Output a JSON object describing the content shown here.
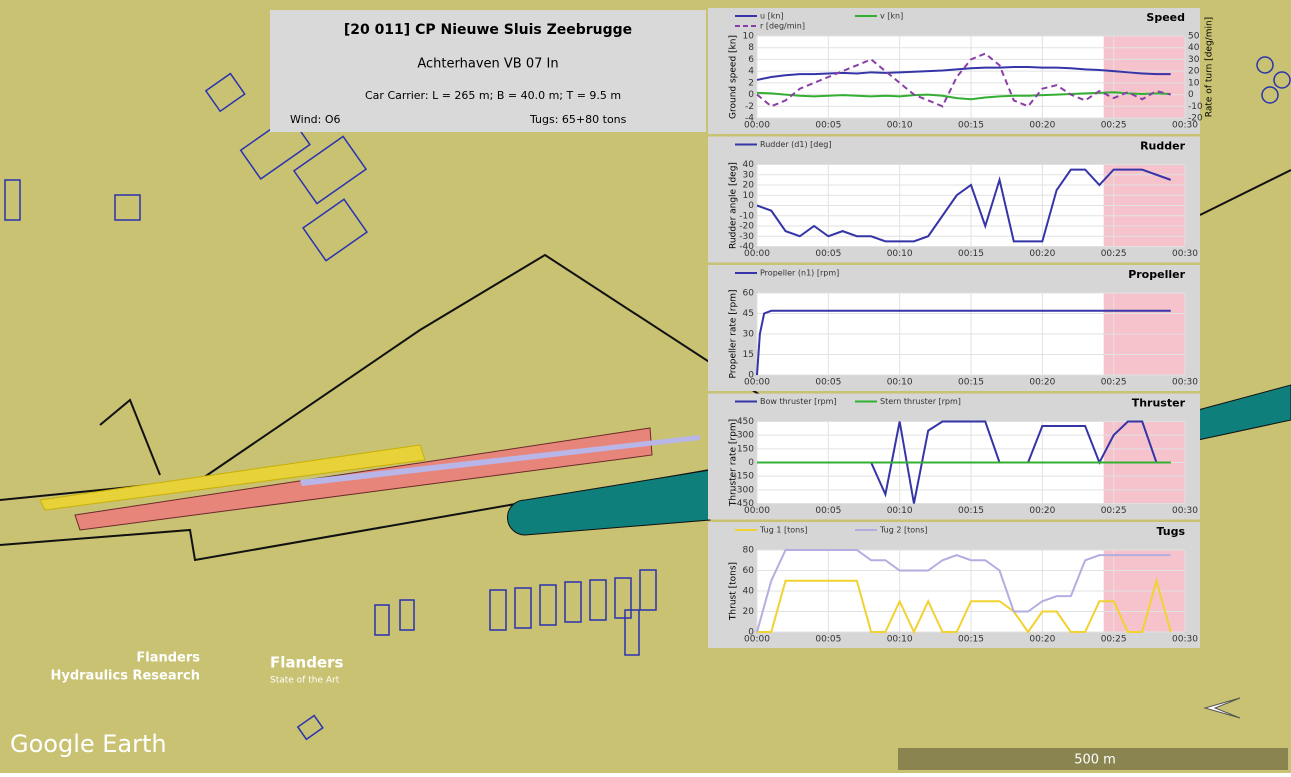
{
  "info_box": {
    "title": "[20 011] CP Nieuwe Sluis Zeebrugge",
    "subtitle": "Achterhaven VB 07 In",
    "ship": "Car Carrier: L = 265 m; B = 40.0 m; T = 9.5 m",
    "wind": "Wind: O6",
    "tugs": "Tugs: 65+80 tons"
  },
  "map": {
    "logo_left_1": "Flanders",
    "logo_left_2": "Hydraulics Research",
    "logo_right_1": "Flanders",
    "logo_right_2": "State of the Art",
    "brand": "Google Earth",
    "scale": "500 m"
  },
  "chart_data": [
    {
      "type": "line",
      "title": "Speed",
      "ylabel": "Ground speed [kn]",
      "y2label": "Rate of turn [deg/min]",
      "x": [
        0,
        1,
        2,
        3,
        4,
        5,
        6,
        7,
        8,
        9,
        10,
        11,
        12,
        13,
        14,
        15,
        16,
        17,
        18,
        19,
        20,
        21,
        22,
        23,
        24,
        25,
        26,
        27,
        28,
        29
      ],
      "xlim": [
        0,
        30
      ],
      "xticks": [
        {
          "value": 0,
          "label": "00:00"
        },
        {
          "value": 5,
          "label": "00:05"
        },
        {
          "value": 10,
          "label": "00:10"
        },
        {
          "value": 15,
          "label": "00:15"
        },
        {
          "value": 20,
          "label": "00:20"
        },
        {
          "value": 25,
          "label": "00:25"
        },
        {
          "value": 30,
          "label": "00:30"
        }
      ],
      "ylim": [
        -4,
        10
      ],
      "yticks": [
        -4,
        -2,
        0,
        2,
        4,
        6,
        8,
        10
      ],
      "y2lim": [
        -20,
        50
      ],
      "y2ticks": [
        -20,
        -10,
        0,
        10,
        20,
        30,
        40,
        50
      ],
      "grid": true,
      "shaded_span": [
        24.3,
        30
      ],
      "shade_color": "#f4b8c4",
      "series": [
        {
          "name": "u [kn]",
          "color": "#3535a8",
          "values": [
            2.5,
            3,
            3.3,
            3.5,
            3.5,
            3.6,
            3.7,
            3.6,
            3.8,
            3.7,
            3.8,
            3.9,
            4,
            4.1,
            4.3,
            4.5,
            4.6,
            4.6,
            4.7,
            4.7,
            4.6,
            4.6,
            4.5,
            4.3,
            4.2,
            4,
            3.8,
            3.6,
            3.5,
            3.5
          ]
        },
        {
          "name": "v [kn]",
          "color": "#33b033",
          "values": [
            0.3,
            0.2,
            0,
            -0.2,
            -0.3,
            -0.2,
            -0.1,
            -0.2,
            -0.3,
            -0.2,
            -0.3,
            -0.1,
            0,
            -0.2,
            -0.6,
            -0.8,
            -0.5,
            -0.3,
            -0.2,
            -0.2,
            -0.1,
            0,
            0.1,
            0.2,
            0.3,
            0.4,
            0.2,
            0.1,
            0.2,
            0.1
          ]
        },
        {
          "name": "r [deg/min]",
          "color": "#8a3fa8",
          "dashed": true,
          "axis": "y2",
          "values": [
            0,
            -10,
            -5,
            5,
            10,
            15,
            20,
            25,
            30,
            20,
            10,
            0,
            -5,
            -10,
            15,
            30,
            35,
            25,
            -5,
            -10,
            5,
            8,
            0,
            -5,
            3,
            -3,
            2,
            -4,
            3,
            0
          ]
        }
      ]
    },
    {
      "type": "line",
      "title": "Rudder",
      "ylabel": "Rudder angle [deg]",
      "x": [
        0,
        1,
        2,
        3,
        4,
        5,
        6,
        7,
        8,
        9,
        10,
        11,
        12,
        13,
        14,
        15,
        16,
        17,
        18,
        19,
        20,
        21,
        22,
        23,
        24,
        25,
        26,
        27,
        28,
        29
      ],
      "xlim": [
        0,
        30
      ],
      "xticks": [
        {
          "value": 0,
          "label": "00:00"
        },
        {
          "value": 5,
          "label": "00:05"
        },
        {
          "value": 10,
          "label": "00:10"
        },
        {
          "value": 15,
          "label": "00:15"
        },
        {
          "value": 20,
          "label": "00:20"
        },
        {
          "value": 25,
          "label": "00:25"
        },
        {
          "value": 30,
          "label": "00:30"
        }
      ],
      "ylim": [
        -40,
        40
      ],
      "yticks": [
        -40,
        -30,
        -20,
        -10,
        0,
        10,
        20,
        30,
        40
      ],
      "grid": true,
      "shaded_span": [
        24.3,
        30
      ],
      "shade_color": "#f4b8c4",
      "series": [
        {
          "name": "Rudder (d1) [deg]",
          "color": "#3535a8",
          "values": [
            0,
            -5,
            -25,
            -30,
            -20,
            -30,
            -25,
            -30,
            -30,
            -35,
            -35,
            -35,
            -30,
            -10,
            10,
            20,
            -20,
            25,
            -35,
            -35,
            -35,
            15,
            35,
            35,
            20,
            35,
            35,
            35,
            30,
            25
          ]
        }
      ]
    },
    {
      "type": "line",
      "title": "Propeller",
      "ylabel": "Propeller rate [rpm]",
      "x": [
        0,
        0.2,
        0.5,
        1,
        29
      ],
      "xlim": [
        0,
        30
      ],
      "xticks": [
        {
          "value": 0,
          "label": "00:00"
        },
        {
          "value": 5,
          "label": "00:05"
        },
        {
          "value": 10,
          "label": "00:10"
        },
        {
          "value": 15,
          "label": "00:15"
        },
        {
          "value": 20,
          "label": "00:20"
        },
        {
          "value": 25,
          "label": "00:25"
        },
        {
          "value": 30,
          "label": "00:30"
        }
      ],
      "ylim": [
        0,
        60
      ],
      "yticks": [
        0,
        15,
        30,
        45,
        60
      ],
      "grid": true,
      "shaded_span": [
        24.3,
        30
      ],
      "shade_color": "#f4b8c4",
      "series": [
        {
          "name": "Propeller (n1) [rpm]",
          "color": "#3535a8",
          "values": [
            0,
            30,
            45,
            47,
            47
          ]
        }
      ]
    },
    {
      "type": "line",
      "title": "Thruster",
      "ylabel": "Thruster rate [rpm]",
      "x": [
        0,
        1,
        2,
        3,
        4,
        5,
        6,
        7,
        8,
        9,
        10,
        11,
        12,
        13,
        14,
        15,
        16,
        17,
        18,
        19,
        20,
        21,
        22,
        23,
        24,
        25,
        26,
        27,
        28,
        29
      ],
      "xlim": [
        0,
        30
      ],
      "xticks": [
        {
          "value": 0,
          "label": "00:00"
        },
        {
          "value": 5,
          "label": "00:05"
        },
        {
          "value": 10,
          "label": "00:10"
        },
        {
          "value": 15,
          "label": "00:15"
        },
        {
          "value": 20,
          "label": "00:20"
        },
        {
          "value": 25,
          "label": "00:25"
        },
        {
          "value": 30,
          "label": "00:30"
        }
      ],
      "ylim": [
        -450,
        450
      ],
      "yticks": [
        -450,
        -300,
        -150,
        0,
        150,
        300,
        450
      ],
      "grid": true,
      "shaded_span": [
        24.3,
        30
      ],
      "shade_color": "#f4b8c4",
      "series": [
        {
          "name": "Bow thruster [rpm]",
          "color": "#3535a8",
          "values": [
            0,
            0,
            0,
            0,
            0,
            0,
            0,
            0,
            0,
            -350,
            450,
            -450,
            350,
            450,
            450,
            450,
            450,
            0,
            0,
            0,
            400,
            400,
            400,
            400,
            0,
            300,
            450,
            450,
            0,
            0
          ]
        },
        {
          "name": "Stern thruster [rpm]",
          "color": "#33b033",
          "values": [
            0,
            0,
            0,
            0,
            0,
            0,
            0,
            0,
            0,
            0,
            0,
            0,
            0,
            0,
            0,
            0,
            0,
            0,
            0,
            0,
            0,
            0,
            0,
            0,
            0,
            0,
            0,
            0,
            0,
            0
          ]
        }
      ]
    },
    {
      "type": "line",
      "title": "Tugs",
      "ylabel": "Thrust [tons]",
      "x": [
        0,
        1,
        2,
        3,
        4,
        5,
        6,
        7,
        8,
        9,
        10,
        11,
        12,
        13,
        14,
        15,
        16,
        17,
        18,
        19,
        20,
        21,
        22,
        23,
        24,
        25,
        26,
        27,
        28,
        29
      ],
      "xlim": [
        0,
        30
      ],
      "xticks": [
        {
          "value": 0,
          "label": "00:00"
        },
        {
          "value": 5,
          "label": "00:05"
        },
        {
          "value": 10,
          "label": "00:10"
        },
        {
          "value": 15,
          "label": "00:15"
        },
        {
          "value": 20,
          "label": "00:20"
        },
        {
          "value": 25,
          "label": "00:25"
        },
        {
          "value": 30,
          "label": "00:30"
        }
      ],
      "ylim": [
        0,
        80
      ],
      "yticks": [
        0,
        20,
        40,
        60,
        80
      ],
      "grid": true,
      "shaded_span": [
        24.3,
        30
      ],
      "shade_color": "#f4b8c4",
      "series": [
        {
          "name": "Tug 1 [tons]",
          "color": "#f2d230",
          "values": [
            0,
            0,
            50,
            50,
            50,
            50,
            50,
            50,
            0,
            0,
            30,
            0,
            30,
            0,
            0,
            30,
            30,
            30,
            20,
            0,
            20,
            20,
            0,
            0,
            30,
            30,
            0,
            0,
            50,
            0
          ]
        },
        {
          "name": "Tug 2 [tons]",
          "color": "#b3aee0",
          "values": [
            0,
            50,
            80,
            80,
            80,
            80,
            80,
            80,
            70,
            70,
            60,
            60,
            60,
            70,
            75,
            70,
            70,
            60,
            20,
            20,
            30,
            35,
            35,
            70,
            75,
            75,
            75,
            75,
            75,
            75
          ]
        }
      ]
    }
  ]
}
